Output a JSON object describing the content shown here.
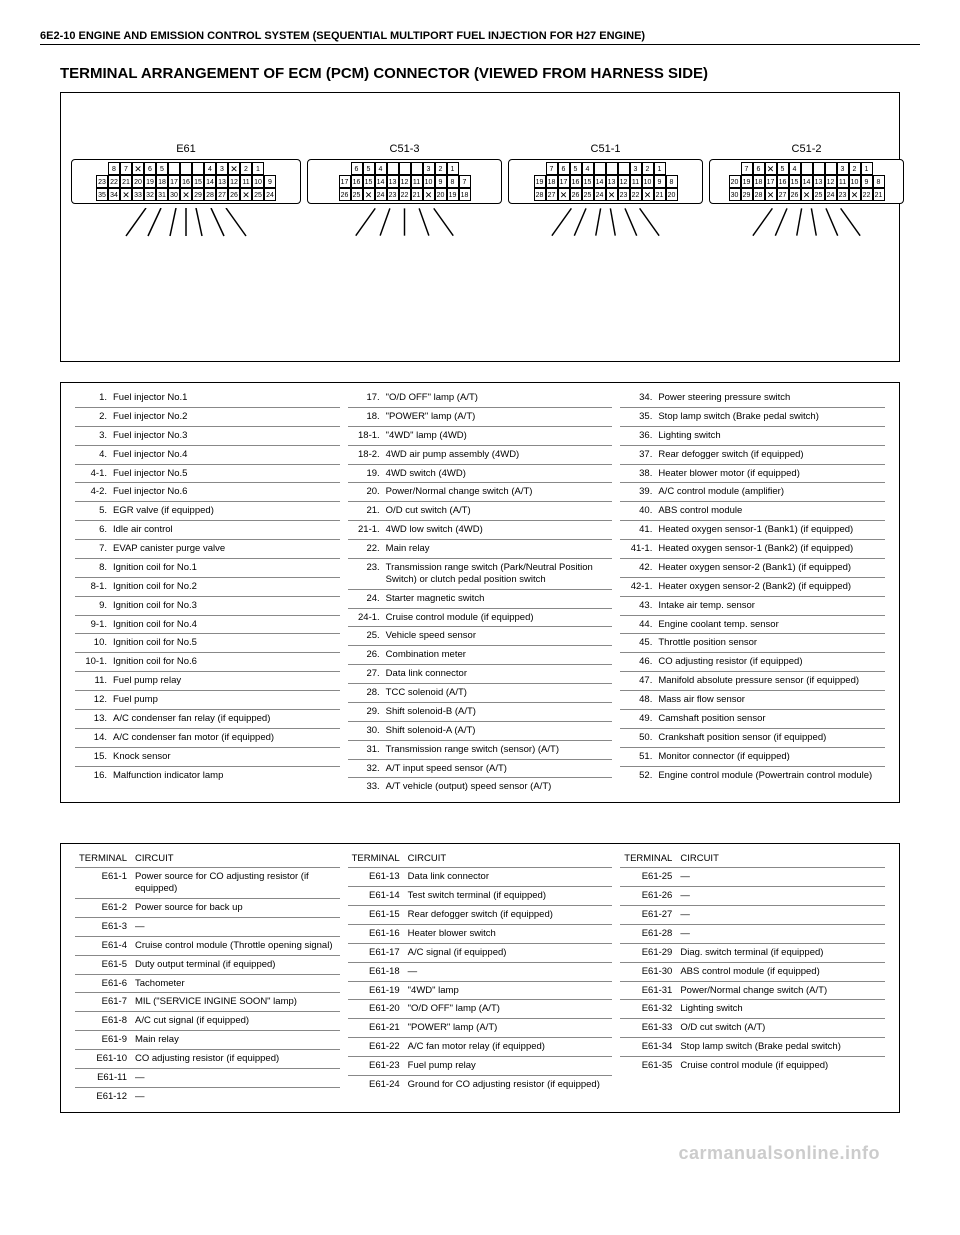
{
  "header": "6E2-10 ENGINE AND EMISSION CONTROL SYSTEM (SEQUENTIAL MULTIPORT FUEL INJECTION FOR H27 ENGINE)",
  "section_title": "TERMINAL ARRANGEMENT OF ECM (PCM) CONNECTOR (VIEWED FROM HARNESS SIDE)",
  "connectors": {
    "e61": {
      "label": "E61"
    },
    "c513": {
      "label": "C51-3"
    },
    "c511": {
      "label": "C51-1"
    },
    "c512": {
      "label": "C51-2"
    }
  },
  "legend_header_num": "",
  "legend": [
    [
      {
        "n": "1.",
        "t": "Fuel injector No.1"
      },
      {
        "n": "2.",
        "t": "Fuel injector No.2"
      },
      {
        "n": "3.",
        "t": "Fuel injector No.3"
      },
      {
        "n": "4.",
        "t": "Fuel injector No.4"
      },
      {
        "n": "4-1.",
        "t": "Fuel injector No.5"
      },
      {
        "n": "4-2.",
        "t": "Fuel injector No.6"
      },
      {
        "n": "5.",
        "t": "EGR valve (if equipped)"
      },
      {
        "n": "6.",
        "t": "Idle air control"
      },
      {
        "n": "7.",
        "t": "EVAP canister purge valve"
      },
      {
        "n": "8.",
        "t": "Ignition coil for No.1"
      },
      {
        "n": "8-1.",
        "t": "Ignition coil for No.2"
      },
      {
        "n": "9.",
        "t": "Ignition coil for No.3"
      },
      {
        "n": "9-1.",
        "t": "Ignition coil for No.4"
      },
      {
        "n": "10.",
        "t": "Ignition coil for No.5"
      },
      {
        "n": "10-1.",
        "t": "Ignition coil for No.6"
      },
      {
        "n": "11.",
        "t": "Fuel pump relay"
      },
      {
        "n": "12.",
        "t": "Fuel pump"
      },
      {
        "n": "13.",
        "t": "A/C condenser fan relay (if equipped)"
      },
      {
        "n": "14.",
        "t": "A/C condenser fan motor (if equipped)"
      },
      {
        "n": "15.",
        "t": "Knock sensor"
      },
      {
        "n": "16.",
        "t": "Malfunction indicator lamp"
      }
    ],
    [
      {
        "n": "17.",
        "t": "\"O/D OFF\" lamp (A/T)"
      },
      {
        "n": "18.",
        "t": "\"POWER\" lamp (A/T)"
      },
      {
        "n": "18-1.",
        "t": "\"4WD\" lamp (4WD)"
      },
      {
        "n": "18-2.",
        "t": "4WD air pump assembly (4WD)"
      },
      {
        "n": "19.",
        "t": "4WD switch (4WD)"
      },
      {
        "n": "20.",
        "t": "Power/Normal change switch (A/T)"
      },
      {
        "n": "21.",
        "t": "O/D cut switch (A/T)"
      },
      {
        "n": "21-1.",
        "t": "4WD low switch (4WD)"
      },
      {
        "n": "22.",
        "t": "Main relay"
      },
      {
        "n": "23.",
        "t": "Transmission range switch (Park/Neutral Position Switch) or clutch pedal position switch"
      },
      {
        "n": "24.",
        "t": "Starter magnetic switch"
      },
      {
        "n": "24-1.",
        "t": "Cruise control module (if equipped)"
      },
      {
        "n": "25.",
        "t": "Vehicle speed sensor"
      },
      {
        "n": "26.",
        "t": "Combination meter"
      },
      {
        "n": "27.",
        "t": "Data link connector"
      },
      {
        "n": "28.",
        "t": "TCC solenoid (A/T)"
      },
      {
        "n": "29.",
        "t": "Shift solenoid-B (A/T)"
      },
      {
        "n": "30.",
        "t": "Shift solenoid-A (A/T)"
      },
      {
        "n": "31.",
        "t": "Transmission range switch (sensor) (A/T)"
      },
      {
        "n": "32.",
        "t": "A/T input speed sensor (A/T)"
      },
      {
        "n": "33.",
        "t": "A/T vehicle (output) speed sensor (A/T)"
      }
    ],
    [
      {
        "n": "34.",
        "t": "Power steering pressure switch"
      },
      {
        "n": "35.",
        "t": "Stop lamp switch (Brake pedal switch)"
      },
      {
        "n": "36.",
        "t": "Lighting switch"
      },
      {
        "n": "37.",
        "t": "Rear defogger switch (if equipped)"
      },
      {
        "n": "38.",
        "t": "Heater blower motor (if equipped)"
      },
      {
        "n": "39.",
        "t": "A/C control module (amplifier)"
      },
      {
        "n": "40.",
        "t": "ABS control module"
      },
      {
        "n": "41.",
        "t": "Heated oxygen sensor-1 (Bank1) (if equipped)"
      },
      {
        "n": "41-1.",
        "t": "Heated oxygen sensor-1 (Bank2) (if equipped)"
      },
      {
        "n": "42.",
        "t": "Heater oxygen sensor-2 (Bank1) (if equipped)"
      },
      {
        "n": "42-1.",
        "t": "Heater oxygen sensor-2 (Bank2) (if equipped)"
      },
      {
        "n": "43.",
        "t": "Intake air temp. sensor"
      },
      {
        "n": "44.",
        "t": "Engine coolant temp. sensor"
      },
      {
        "n": "45.",
        "t": "Throttle position sensor"
      },
      {
        "n": "46.",
        "t": "CO adjusting resistor   (if equipped)"
      },
      {
        "n": "47.",
        "t": "Manifold absolute pressure sensor (if equipped)"
      },
      {
        "n": "48.",
        "t": "Mass air flow sensor"
      },
      {
        "n": "49.",
        "t": "Camshaft position sensor"
      },
      {
        "n": "50.",
        "t": "Crankshaft position sensor (if equipped)"
      },
      {
        "n": "51.",
        "t": "Monitor connector (if equipped)"
      },
      {
        "n": "52.",
        "t": "Engine control module (Powertrain control module)"
      }
    ]
  ],
  "circuit_headers": {
    "terminal": "TERMINAL",
    "circuit": "CIRCUIT"
  },
  "circuits": [
    [
      {
        "t": "E61-1",
        "c": "Power source for CO adjusting resistor (if equipped)"
      },
      {
        "t": "E61-2",
        "c": "Power source for back up"
      },
      {
        "t": "E61-3",
        "c": "—"
      },
      {
        "t": "E61-4",
        "c": "Cruise control module (Throttle opening signal)"
      },
      {
        "t": "E61-5",
        "c": "Duty output terminal (if equipped)"
      },
      {
        "t": "E61-6",
        "c": "Tachometer"
      },
      {
        "t": "E61-7",
        "c": "MIL (\"SERVICE INGINE SOON\" lamp)"
      },
      {
        "t": "E61-8",
        "c": "A/C cut signal (if equipped)"
      },
      {
        "t": "E61-9",
        "c": "Main relay"
      },
      {
        "t": "E61-10",
        "c": "CO adjusting resistor (if equipped)"
      },
      {
        "t": "E61-11",
        "c": "—"
      },
      {
        "t": "E61-12",
        "c": "—"
      }
    ],
    [
      {
        "t": "E61-13",
        "c": "Data link connector"
      },
      {
        "t": "E61-14",
        "c": "Test switch terminal (if equipped)"
      },
      {
        "t": "E61-15",
        "c": "Rear defogger switch (if equipped)"
      },
      {
        "t": "E61-16",
        "c": "Heater blower switch"
      },
      {
        "t": "E61-17",
        "c": "A/C signal (if equipped)"
      },
      {
        "t": "E61-18",
        "c": "—"
      },
      {
        "t": "E61-19",
        "c": "\"4WD\" lamp"
      },
      {
        "t": "E61-20",
        "c": "\"O/D OFF\" lamp (A/T)"
      },
      {
        "t": "E61-21",
        "c": "\"POWER\" lamp (A/T)"
      },
      {
        "t": "E61-22",
        "c": "A/C fan motor relay (if equipped)"
      },
      {
        "t": "E61-23",
        "c": "Fuel pump relay"
      },
      {
        "t": "E61-24",
        "c": "Ground for CO adjusting resistor (if equipped)"
      }
    ],
    [
      {
        "t": "E61-25",
        "c": "—"
      },
      {
        "t": "E61-26",
        "c": "—"
      },
      {
        "t": "E61-27",
        "c": "—"
      },
      {
        "t": "E61-28",
        "c": "—"
      },
      {
        "t": "E61-29",
        "c": "Diag. switch terminal (if equipped)"
      },
      {
        "t": "E61-30",
        "c": "ABS control module (if equipped)"
      },
      {
        "t": "E61-31",
        "c": "Power/Normal change switch (A/T)"
      },
      {
        "t": "E61-32",
        "c": "Lighting switch"
      },
      {
        "t": "E61-33",
        "c": "O/D cut switch (A/T)"
      },
      {
        "t": "E61-34",
        "c": "Stop lamp switch (Brake pedal switch)"
      },
      {
        "t": "E61-35",
        "c": "Cruise control module (if equipped)"
      }
    ]
  ],
  "watermark": "carmanualsonline.info",
  "colors": {
    "text": "#000000",
    "border": "#000000",
    "row_border": "#888888",
    "background": "#ffffff",
    "watermark": "#cccccc"
  },
  "fonts": {
    "body_family": "Arial, Helvetica, sans-serif",
    "header_size_pt": 11,
    "title_size_pt": 15,
    "table_size_pt": 9.5,
    "pin_size_pt": 7
  }
}
